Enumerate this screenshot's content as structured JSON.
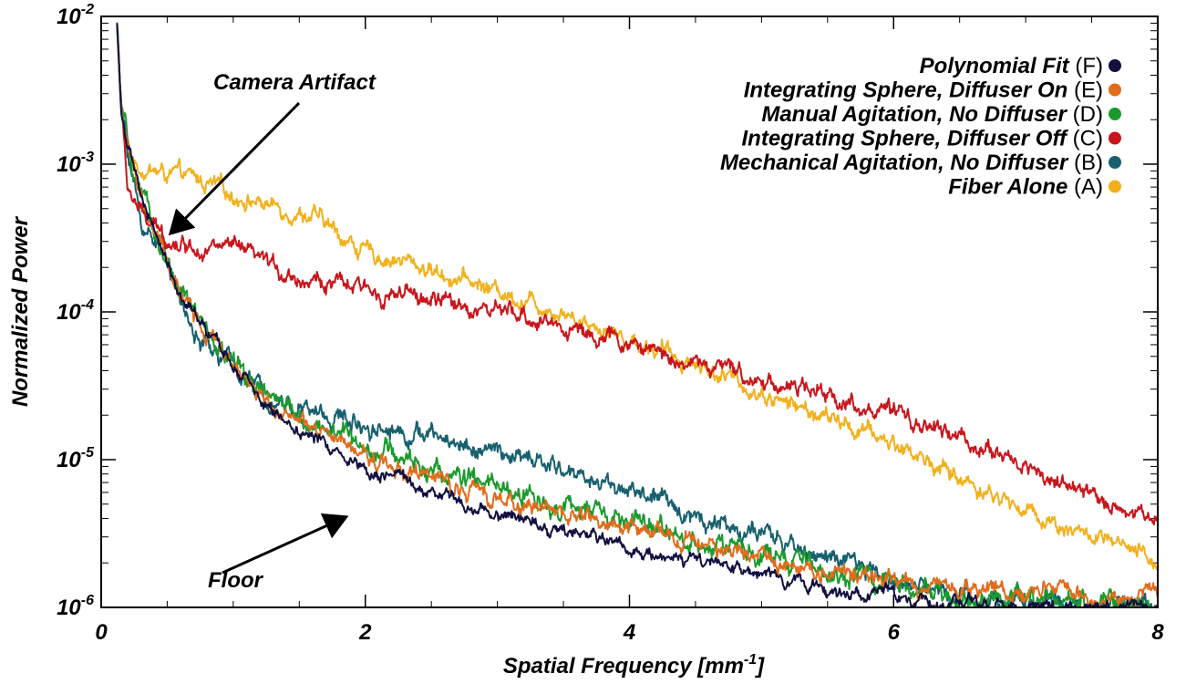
{
  "chart_data": {
    "type": "line",
    "xlabel": "Spatial Frequency [mm",
    "xlabel_sup": "-1",
    "xlabel_end": "]",
    "ylabel": "Normalized Power",
    "xlim": [
      0,
      8
    ],
    "ylim": [
      1e-06,
      0.01
    ],
    "yscale": "log",
    "x_ticks": [
      0,
      2,
      4,
      6,
      8
    ],
    "x_tick_labels": [
      "0",
      "2",
      "4",
      "6",
      "8"
    ],
    "y_ticks": [
      1e-06,
      1e-05,
      0.0001,
      0.001,
      0.01
    ],
    "y_tick_labels": [
      {
        "base": "10",
        "exp": "-6"
      },
      {
        "base": "10",
        "exp": "-5"
      },
      {
        "base": "10",
        "exp": "-4"
      },
      {
        "base": "10",
        "exp": "-3"
      },
      {
        "base": "10",
        "exp": "-2"
      }
    ],
    "legend_position": "top-right",
    "annotations": [
      {
        "text": "Camera Artifact",
        "target": [
          0.45,
          0.00032
        ]
      },
      {
        "text": "Floor",
        "target": [
          1.9,
          5.3e-06
        ]
      }
    ],
    "series": [
      {
        "name": "Polynomial Fit",
        "code": "(F)",
        "color": "#121040",
        "noise": 0.03,
        "points": [
          [
            0.12,
            0.009
          ],
          [
            0.15,
            0.0025
          ],
          [
            0.2,
            0.0013
          ],
          [
            0.3,
            0.0006
          ],
          [
            0.4,
            0.00035
          ],
          [
            0.5,
            0.00022
          ],
          [
            0.6,
            0.00013
          ],
          [
            0.8,
            7e-05
          ],
          [
            1.0,
            4.5e-05
          ],
          [
            1.2,
            2.5e-05
          ],
          [
            1.5,
            1.6e-05
          ],
          [
            2.0,
            9e-06
          ],
          [
            2.5,
            6e-06
          ],
          [
            3.0,
            4.3e-06
          ],
          [
            3.5,
            3.4e-06
          ],
          [
            4.0,
            2.6e-06
          ],
          [
            4.5,
            2e-06
          ],
          [
            5.0,
            1.6e-06
          ],
          [
            5.5,
            1.35e-06
          ],
          [
            6.0,
            1.15e-06
          ],
          [
            6.5,
            1.05e-06
          ],
          [
            7.0,
            1e-06
          ],
          [
            8.0,
            1e-06
          ]
        ]
      },
      {
        "name": "Integrating Sphere, Diffuser On",
        "code": "(E)",
        "color": "#e06c1c",
        "noise": 0.04,
        "points": [
          [
            0.12,
            0.009
          ],
          [
            0.15,
            0.0025
          ],
          [
            0.2,
            0.0013
          ],
          [
            0.3,
            0.0006
          ],
          [
            0.4,
            0.00035
          ],
          [
            0.5,
            0.00022
          ],
          [
            0.6,
            0.00013
          ],
          [
            0.8,
            7e-05
          ],
          [
            1.0,
            4.5e-05
          ],
          [
            1.2,
            2.8e-05
          ],
          [
            1.5,
            1.75e-05
          ],
          [
            2.0,
            1.05e-05
          ],
          [
            2.5,
            7.4e-06
          ],
          [
            3.0,
            5.5e-06
          ],
          [
            3.5,
            4.4e-06
          ],
          [
            4.0,
            3.5e-06
          ],
          [
            4.5,
            2.7e-06
          ],
          [
            5.0,
            2.2e-06
          ],
          [
            5.5,
            1.8e-06
          ],
          [
            6.0,
            1.5e-06
          ],
          [
            6.5,
            1.35e-06
          ],
          [
            7.0,
            1.3e-06
          ],
          [
            7.5,
            1.25e-06
          ],
          [
            8.0,
            1.25e-06
          ]
        ]
      },
      {
        "name": "Manual Agitation, No Diffuser",
        "code": "(D)",
        "color": "#1a9a2c",
        "noise": 0.05,
        "points": [
          [
            0.12,
            0.009
          ],
          [
            0.15,
            0.0025
          ],
          [
            0.2,
            0.0013
          ],
          [
            0.3,
            0.0006
          ],
          [
            0.4,
            0.00035
          ],
          [
            0.5,
            0.00022
          ],
          [
            0.6,
            0.00013
          ],
          [
            0.8,
            7e-05
          ],
          [
            1.0,
            4.5e-05
          ],
          [
            1.2,
            2.9e-05
          ],
          [
            1.5,
            1.9e-05
          ],
          [
            2.0,
            1.3e-05
          ],
          [
            2.5,
            8.5e-06
          ],
          [
            3.0,
            6.3e-06
          ],
          [
            3.5,
            4.8e-06
          ],
          [
            4.0,
            3.7e-06
          ],
          [
            4.5,
            2.9e-06
          ],
          [
            5.0,
            2.2e-06
          ],
          [
            5.5,
            1.8e-06
          ],
          [
            6.0,
            1.4e-06
          ],
          [
            6.5,
            1.2e-06
          ],
          [
            7.0,
            1.08e-06
          ],
          [
            7.5,
            1.05e-06
          ],
          [
            8.0,
            1e-06
          ]
        ]
      },
      {
        "name": "Integrating Sphere, Diffuser Off",
        "code": "(C)",
        "color": "#c8161c",
        "noise": 0.04,
        "points": [
          [
            0.12,
            0.009
          ],
          [
            0.15,
            0.0025
          ],
          [
            0.2,
            0.0007
          ],
          [
            0.3,
            0.00046
          ],
          [
            0.4,
            0.00036
          ],
          [
            0.5,
            0.00032
          ],
          [
            0.6,
            0.00029
          ],
          [
            0.8,
            0.00028
          ],
          [
            1.0,
            0.00027
          ],
          [
            1.2,
            0.00022
          ],
          [
            1.5,
            0.00017
          ],
          [
            2.0,
            0.00014
          ],
          [
            2.5,
            0.00012
          ],
          [
            3.0,
            0.0001
          ],
          [
            3.5,
            8e-05
          ],
          [
            4.0,
            6e-05
          ],
          [
            4.5,
            4.5e-05
          ],
          [
            5.0,
            3.5e-05
          ],
          [
            5.5,
            2.7e-05
          ],
          [
            6.0,
            2e-05
          ],
          [
            6.5,
            1.4e-05
          ],
          [
            7.0,
            9e-06
          ],
          [
            7.5,
            5.5e-06
          ],
          [
            8.0,
            4e-06
          ]
        ]
      },
      {
        "name": "Mechanical Agitation, No Diffuser",
        "code": "(B)",
        "color": "#17606e",
        "noise": 0.045,
        "points": [
          [
            0.12,
            0.009
          ],
          [
            0.15,
            0.0025
          ],
          [
            0.2,
            0.0013
          ],
          [
            0.3,
            0.0004
          ],
          [
            0.35,
            0.00034
          ],
          [
            0.4,
            0.00033
          ],
          [
            0.5,
            0.00025
          ],
          [
            0.6,
            0.00012
          ],
          [
            0.7,
            7e-05
          ],
          [
            0.8,
            5.7e-05
          ],
          [
            1.0,
            4.3e-05
          ],
          [
            1.2,
            3e-05
          ],
          [
            1.5,
            2.2e-05
          ],
          [
            2.0,
            1.75e-05
          ],
          [
            2.5,
            1.45e-05
          ],
          [
            3.0,
            1.1e-05
          ],
          [
            3.5,
            8.5e-06
          ],
          [
            4.0,
            6.3e-06
          ],
          [
            4.5,
            4.2e-06
          ],
          [
            5.0,
            3e-06
          ],
          [
            5.5,
            2.2e-06
          ],
          [
            6.0,
            1.5e-06
          ],
          [
            6.5,
            1.2e-06
          ],
          [
            7.0,
            1.08e-06
          ],
          [
            7.5,
            1.04e-06
          ],
          [
            8.0,
            1e-06
          ]
        ]
      },
      {
        "name": "Fiber Alone",
        "code": "(A)",
        "color": "#f2b11c",
        "noise": 0.04,
        "points": [
          [
            0.12,
            0.009
          ],
          [
            0.15,
            0.0025
          ],
          [
            0.2,
            0.0011
          ],
          [
            0.3,
            0.00095
          ],
          [
            0.5,
            0.00085
          ],
          [
            0.7,
            0.0008
          ],
          [
            1.0,
            0.00062
          ],
          [
            1.3,
            0.00052
          ],
          [
            1.6,
            0.00045
          ],
          [
            2.0,
            0.00025
          ],
          [
            2.3,
            0.00022
          ],
          [
            2.6,
            0.00018
          ],
          [
            3.0,
            0.00014
          ],
          [
            3.5,
            0.0001
          ],
          [
            4.0,
            6.5e-05
          ],
          [
            4.5,
            4.5e-05
          ],
          [
            5.0,
            2.8e-05
          ],
          [
            5.5,
            1.9e-05
          ],
          [
            6.0,
            1.3e-05
          ],
          [
            6.5,
            7.5e-06
          ],
          [
            7.0,
            4.5e-06
          ],
          [
            7.5,
            3e-06
          ],
          [
            8.0,
            2e-06
          ]
        ]
      }
    ]
  }
}
